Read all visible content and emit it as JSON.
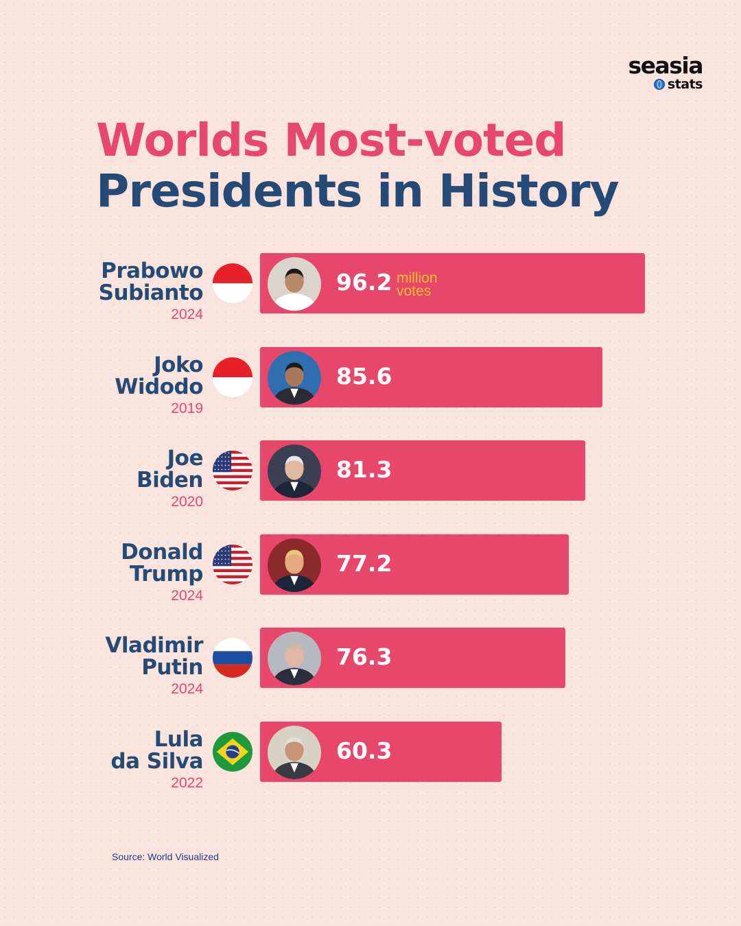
{
  "brand": {
    "name": "seasia",
    "sub": "stats"
  },
  "title": {
    "line1": "Worlds Most-voted",
    "line2": "Presidents in History"
  },
  "unit": "million votes",
  "unit_lines": [
    "million",
    "votes"
  ],
  "source": "Source: World Visualized",
  "colors": {
    "bar": "#e8476c",
    "title_accent": "#e8476c",
    "title_main": "#254a75",
    "unit": "#f5c12a",
    "background": "#f9e5de"
  },
  "chart_data": {
    "type": "bar",
    "orientation": "horizontal",
    "title": "Worlds Most-voted Presidents in History",
    "value_unit": "million votes",
    "categories": [
      "Prabowo Subianto",
      "Joko Widodo",
      "Joe Biden",
      "Donald Trump",
      "Vladimir Putin",
      "Lula da Silva"
    ],
    "series": [
      {
        "values": [
          96.2,
          85.6,
          81.3,
          77.2,
          76.3,
          60.3
        ]
      }
    ],
    "items": [
      {
        "name_lines": [
          "Prabowo",
          "Subianto"
        ],
        "year": "2024",
        "value": 96.2,
        "value_label": "96.2",
        "flag": "indonesia-flag-icon",
        "photo": "prabowo-photo"
      },
      {
        "name_lines": [
          "Joko",
          "Widodo"
        ],
        "year": "2019",
        "value": 85.6,
        "value_label": "85.6",
        "flag": "indonesia-flag-icon",
        "photo": "jokowi-photo"
      },
      {
        "name_lines": [
          "Joe",
          "Biden"
        ],
        "year": "2020",
        "value": 81.3,
        "value_label": "81.3",
        "flag": "usa-flag-icon",
        "photo": "biden-photo"
      },
      {
        "name_lines": [
          "Donald",
          "Trump"
        ],
        "year": "2024",
        "value": 77.2,
        "value_label": "77.2",
        "flag": "usa-flag-icon",
        "photo": "trump-photo"
      },
      {
        "name_lines": [
          "Vladimir",
          "Putin"
        ],
        "year": "2024",
        "value": 76.3,
        "value_label": "76.3",
        "flag": "russia-flag-icon",
        "photo": "putin-photo"
      },
      {
        "name_lines": [
          "Lula",
          "da Silva"
        ],
        "year": "2022",
        "value": 60.3,
        "value_label": "60.3",
        "flag": "brazil-flag-icon",
        "photo": "lula-photo"
      }
    ]
  }
}
